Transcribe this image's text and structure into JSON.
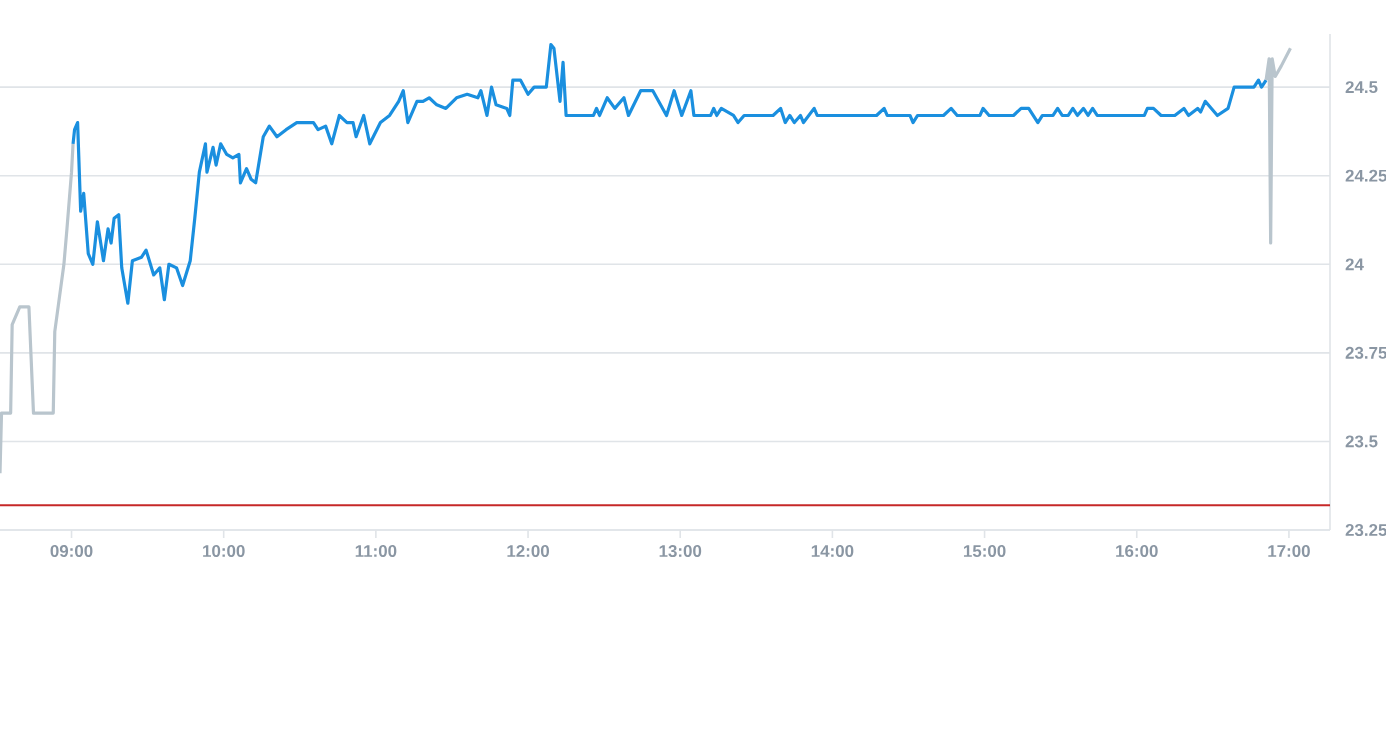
{
  "chart_data": {
    "type": "line",
    "xlim": [
      8.53,
      17.27
    ],
    "ylim": [
      23.25,
      24.65
    ],
    "xticks": [
      {
        "value": 9,
        "label": "09:00"
      },
      {
        "value": 10,
        "label": "10:00"
      },
      {
        "value": 11,
        "label": "11:00"
      },
      {
        "value": 12,
        "label": "12:00"
      },
      {
        "value": 13,
        "label": "13:00"
      },
      {
        "value": 14,
        "label": "14:00"
      },
      {
        "value": 15,
        "label": "15:00"
      },
      {
        "value": 16,
        "label": "16:00"
      },
      {
        "value": 17,
        "label": "17:00"
      }
    ],
    "yticks": [
      23.25,
      23.5,
      23.75,
      24,
      24.25,
      24.5
    ],
    "grid": "y",
    "marker": "none",
    "line_style": "solid",
    "ref_lines": [
      {
        "axis": "y",
        "value": 23.32,
        "color": "#c62828"
      }
    ],
    "series": [
      {
        "color": "#b9c5cd",
        "x": [
          8.53,
          8.54,
          8.6,
          8.61,
          8.66,
          8.72,
          8.75,
          8.88,
          8.89,
          8.95,
          8.97,
          9.0,
          9.01
        ],
        "values": [
          23.41,
          23.58,
          23.58,
          23.83,
          23.88,
          23.88,
          23.58,
          23.58,
          23.81,
          24.0,
          24.1,
          24.26,
          24.34
        ]
      },
      {
        "color": "#1a8fdf",
        "x": [
          9.01,
          9.02,
          9.04,
          9.06,
          9.08,
          9.11,
          9.14,
          9.17,
          9.21,
          9.24,
          9.26,
          9.28,
          9.31,
          9.33,
          9.37,
          9.4,
          9.46,
          9.49,
          9.54,
          9.58,
          9.61,
          9.64,
          9.69,
          9.73,
          9.78,
          9.81,
          9.84,
          9.88,
          9.89,
          9.93,
          9.95,
          9.98,
          10.02,
          10.06,
          10.1,
          10.11,
          10.15,
          10.18,
          10.21,
          10.26,
          10.3,
          10.35,
          10.41,
          10.48,
          10.54,
          10.59,
          10.62,
          10.67,
          10.71,
          10.76,
          10.81,
          10.85,
          10.87,
          10.92,
          10.96,
          11.03,
          11.09,
          11.15,
          11.18,
          11.21,
          11.27,
          11.31,
          11.35,
          11.4,
          11.46,
          11.53,
          11.6,
          11.67,
          11.69,
          11.73,
          11.76,
          11.79,
          11.86,
          11.88,
          11.9,
          11.95,
          12.0,
          12.04,
          12.12,
          12.15,
          12.17,
          12.21,
          12.23,
          12.25,
          12.43,
          12.45,
          12.47,
          12.52,
          12.57,
          12.63,
          12.66,
          12.74,
          12.82,
          12.91,
          12.96,
          13.01,
          13.07,
          13.09,
          13.2,
          13.22,
          13.24,
          13.27,
          13.35,
          13.38,
          13.42,
          13.61,
          13.66,
          13.69,
          13.72,
          13.75,
          13.79,
          13.81,
          13.88,
          13.9,
          14.29,
          14.34,
          14.36,
          14.51,
          14.53,
          14.56,
          14.73,
          14.78,
          14.82,
          14.97,
          14.99,
          15.03,
          15.19,
          15.24,
          15.29,
          15.35,
          15.38,
          15.45,
          15.48,
          15.51,
          15.55,
          15.58,
          15.61,
          15.65,
          15.68,
          15.71,
          15.74,
          16.05,
          16.07,
          16.11,
          16.16,
          16.25,
          16.31,
          16.34,
          16.4,
          16.42,
          16.45,
          16.49,
          16.53,
          16.6,
          16.64,
          16.77,
          16.8,
          16.82,
          16.85
        ],
        "values": [
          24.34,
          24.38,
          24.4,
          24.15,
          24.2,
          24.03,
          24.0,
          24.12,
          24.01,
          24.1,
          24.06,
          24.13,
          24.14,
          23.99,
          23.89,
          24.01,
          24.02,
          24.04,
          23.97,
          23.99,
          23.9,
          24.0,
          23.99,
          23.94,
          24.01,
          24.13,
          24.26,
          24.34,
          24.26,
          24.33,
          24.28,
          24.34,
          24.31,
          24.3,
          24.31,
          24.23,
          24.27,
          24.24,
          24.23,
          24.36,
          24.39,
          24.36,
          24.38,
          24.4,
          24.4,
          24.4,
          24.38,
          24.39,
          24.34,
          24.42,
          24.4,
          24.4,
          24.36,
          24.42,
          24.34,
          24.4,
          24.42,
          24.46,
          24.49,
          24.4,
          24.46,
          24.46,
          24.47,
          24.45,
          24.44,
          24.47,
          24.48,
          24.47,
          24.49,
          24.42,
          24.5,
          24.45,
          24.44,
          24.42,
          24.52,
          24.52,
          24.48,
          24.5,
          24.5,
          24.62,
          24.61,
          24.46,
          24.57,
          24.42,
          24.42,
          24.44,
          24.42,
          24.47,
          24.44,
          24.47,
          24.42,
          24.49,
          24.49,
          24.42,
          24.49,
          24.42,
          24.49,
          24.42,
          24.42,
          24.44,
          24.42,
          24.44,
          24.42,
          24.4,
          24.42,
          24.42,
          24.44,
          24.4,
          24.42,
          24.4,
          24.42,
          24.4,
          24.44,
          24.42,
          24.42,
          24.44,
          24.42,
          24.42,
          24.4,
          24.42,
          24.42,
          24.44,
          24.42,
          24.42,
          24.44,
          24.42,
          24.42,
          24.44,
          24.44,
          24.4,
          24.42,
          24.42,
          24.44,
          24.42,
          24.42,
          24.44,
          24.42,
          24.44,
          24.42,
          24.44,
          24.42,
          24.42,
          24.44,
          24.44,
          24.42,
          24.42,
          24.44,
          24.42,
          24.44,
          24.43,
          24.46,
          24.44,
          24.42,
          24.44,
          24.5,
          24.5,
          24.52,
          24.5,
          24.52
        ]
      },
      {
        "color": "#b9c5cd",
        "x": [
          16.85,
          16.87,
          16.88,
          16.89,
          16.91,
          16.95,
          17.01
        ],
        "values": [
          24.52,
          24.58,
          24.06,
          24.58,
          24.53,
          24.56,
          24.61
        ]
      }
    ]
  }
}
